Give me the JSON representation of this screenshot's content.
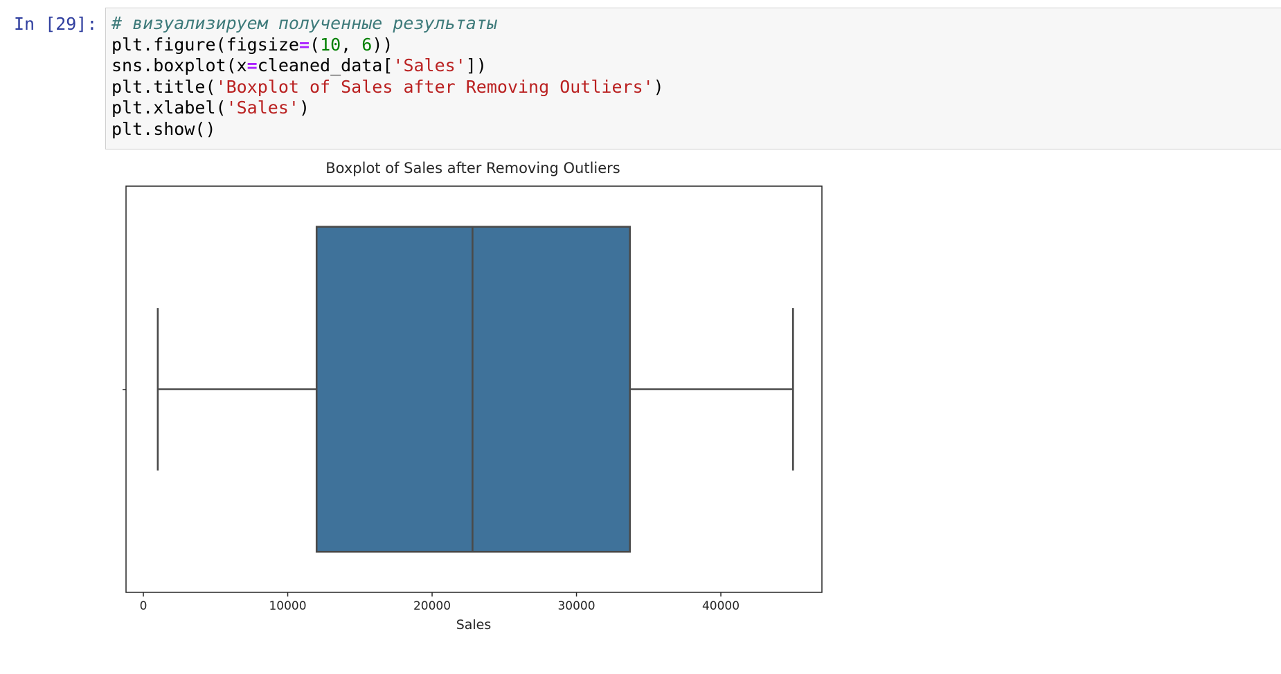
{
  "cell": {
    "prompt": "In [29]:",
    "code_lines": [
      [
        {
          "t": "comment",
          "v": "# визуализируем полученные результаты"
        }
      ],
      [
        {
          "t": "plain",
          "v": "plt.figure(figsize"
        },
        {
          "t": "op",
          "v": "="
        },
        {
          "t": "plain",
          "v": "("
        },
        {
          "t": "num",
          "v": "10"
        },
        {
          "t": "plain",
          "v": ", "
        },
        {
          "t": "num",
          "v": "6"
        },
        {
          "t": "plain",
          "v": "))"
        }
      ],
      [
        {
          "t": "plain",
          "v": "sns.boxplot(x"
        },
        {
          "t": "op",
          "v": "="
        },
        {
          "t": "plain",
          "v": "cleaned_data["
        },
        {
          "t": "str",
          "v": "'Sales'"
        },
        {
          "t": "plain",
          "v": "])"
        }
      ],
      [
        {
          "t": "plain",
          "v": "plt.title("
        },
        {
          "t": "str",
          "v": "'Boxplot of Sales after Removing Outliers'"
        },
        {
          "t": "plain",
          "v": ")"
        }
      ],
      [
        {
          "t": "plain",
          "v": "plt.xlabel("
        },
        {
          "t": "str",
          "v": "'Sales'"
        },
        {
          "t": "plain",
          "v": ")"
        }
      ],
      [
        {
          "t": "plain",
          "v": "plt.show()"
        }
      ]
    ]
  },
  "chart_data": {
    "type": "box",
    "title": "Boxplot of Sales after Removing Outliers",
    "xlabel": "Sales",
    "ylabel": "",
    "xlim": [
      -1200,
      47000
    ],
    "xticks": [
      0,
      10000,
      20000,
      30000,
      40000
    ],
    "xtick_labels": [
      "0",
      "10000",
      "20000",
      "30000",
      "40000"
    ],
    "box": {
      "whisker_low": 1000,
      "q1": 12000,
      "median": 22800,
      "q3": 33700,
      "whisker_high": 45000
    },
    "box_color": "#3f729a",
    "line_color": "#4a4a4a",
    "grid": false,
    "legend": "none"
  }
}
